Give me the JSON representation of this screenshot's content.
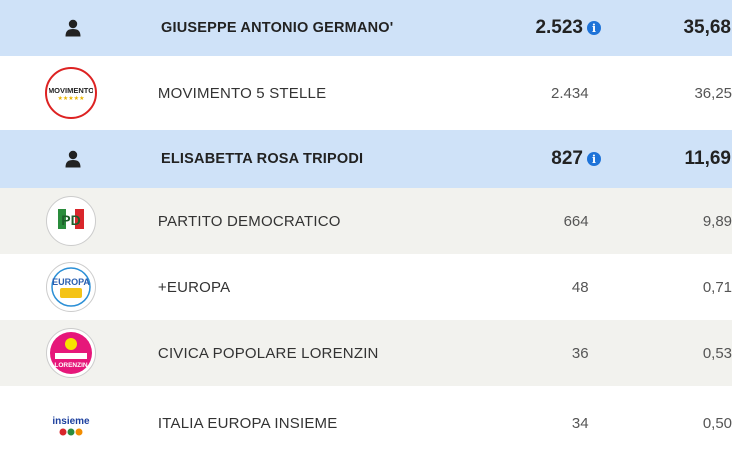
{
  "rows": [
    {
      "type": "candidate",
      "icon": "person-icon",
      "name": "GIUSEPPE ANTONIO GERMANO'",
      "votes": "2.523",
      "percent": "35,68"
    },
    {
      "type": "party",
      "icon": "movimento-5-stelle-logo",
      "name": "MOVIMENTO 5 STELLE",
      "votes": "2.434",
      "percent": "36,25",
      "logo_text": "MOVIMENTO"
    },
    {
      "type": "candidate",
      "icon": "person-icon",
      "name": "ELISABETTA ROSA TRIPODI",
      "votes": "827",
      "percent": "11,69"
    },
    {
      "type": "party",
      "icon": "partito-democratico-logo",
      "name": "PARTITO DEMOCRATICO",
      "votes": "664",
      "percent": "9,89",
      "logo_text": "PD"
    },
    {
      "type": "party",
      "icon": "piu-europa-logo",
      "name": "+EUROPA",
      "votes": "48",
      "percent": "0,71",
      "logo_text": "EUROPA"
    },
    {
      "type": "party",
      "icon": "civica-popolare-logo",
      "name": "CIVICA POPOLARE LORENZIN",
      "votes": "36",
      "percent": "0,53",
      "logo_text": "LORENZIN"
    },
    {
      "type": "party",
      "icon": "italia-europa-insieme-logo",
      "name": "ITALIA EUROPA INSIEME",
      "votes": "34",
      "percent": "0,50",
      "logo_text": "insieme"
    }
  ],
  "info_glyph": "i",
  "colors": {
    "candidate_bg": "#cfe2f8",
    "alt_bg": "#f2f2ee",
    "info_blue": "#1e73d8"
  }
}
